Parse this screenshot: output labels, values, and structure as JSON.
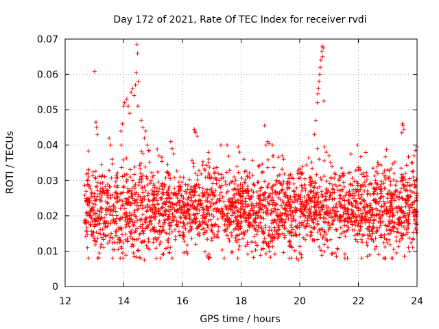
{
  "chart_data": {
    "type": "scatter",
    "title": "Day 172 of 2021, Rate Of TEC Index for receiver rvdi",
    "xlabel": "GPS time / hours",
    "ylabel": "ROTI / TECUs",
    "xlim": [
      12,
      24
    ],
    "ylim": [
      0,
      0.07
    ],
    "xticks": [
      12,
      14,
      16,
      18,
      20,
      22,
      24
    ],
    "yticks": [
      0,
      0.01,
      0.02,
      0.03,
      0.04,
      0.05,
      0.06,
      0.07
    ],
    "xtick_labels": [
      "12",
      "14",
      "16",
      "18",
      "20",
      "22",
      "24"
    ],
    "ytick_labels": [
      "0",
      "0.01",
      "0.02",
      "0.03",
      "0.04",
      "0.05",
      "0.06",
      "0.07"
    ],
    "grid": true,
    "marker": "+",
    "color": "#ff0000",
    "points_generator": {
      "seed": 172,
      "x_start": 12.65,
      "x_end": 24.0,
      "count": 2600,
      "baseline_mean": 0.022,
      "baseline_spread": 0.006,
      "min_value": 0.008,
      "max_value": 0.04
    },
    "points_notable": [
      [
        12.75,
        0.03
      ],
      [
        12.78,
        0.032
      ],
      [
        12.8,
        0.031
      ],
      [
        12.73,
        0.018
      ],
      [
        13.0,
        0.0608
      ],
      [
        13.05,
        0.0465
      ],
      [
        13.07,
        0.045
      ],
      [
        13.1,
        0.043
      ],
      [
        13.15,
        0.015
      ],
      [
        13.5,
        0.042
      ],
      [
        13.55,
        0.04
      ],
      [
        13.6,
        0.036
      ],
      [
        13.9,
        0.044
      ],
      [
        13.95,
        0.046
      ],
      [
        14.0,
        0.051
      ],
      [
        14.02,
        0.052
      ],
      [
        14.1,
        0.053
      ],
      [
        14.15,
        0.051
      ],
      [
        14.2,
        0.049
      ],
      [
        14.25,
        0.055
      ],
      [
        14.3,
        0.056
      ],
      [
        14.35,
        0.054
      ],
      [
        14.4,
        0.057
      ],
      [
        14.42,
        0.0605
      ],
      [
        14.45,
        0.0685
      ],
      [
        14.47,
        0.066
      ],
      [
        14.5,
        0.058
      ],
      [
        14.48,
        0.051
      ],
      [
        14.33,
        0.0095
      ],
      [
        14.35,
        0.0085
      ],
      [
        14.6,
        0.047
      ],
      [
        14.65,
        0.045
      ],
      [
        14.7,
        0.042
      ],
      [
        14.75,
        0.044
      ],
      [
        14.8,
        0.04
      ],
      [
        14.85,
        0.0385
      ],
      [
        14.7,
        0.0075
      ],
      [
        15.2,
        0.037
      ],
      [
        15.6,
        0.041
      ],
      [
        15.65,
        0.039
      ],
      [
        15.7,
        0.0375
      ],
      [
        15.65,
        0.008
      ],
      [
        16.4,
        0.0445
      ],
      [
        16.45,
        0.0435
      ],
      [
        16.5,
        0.0425
      ],
      [
        16.42,
        0.044
      ],
      [
        16.9,
        0.035
      ],
      [
        17.9,
        0.0395
      ],
      [
        17.95,
        0.038
      ],
      [
        18.1,
        0.036
      ],
      [
        18.4,
        0.0315
      ],
      [
        18.8,
        0.0455
      ],
      [
        18.85,
        0.04
      ],
      [
        18.9,
        0.041
      ],
      [
        18.95,
        0.0405
      ],
      [
        19.0,
        0.0083
      ],
      [
        18.7,
        0.0105
      ],
      [
        19.4,
        0.037
      ],
      [
        19.45,
        0.036
      ],
      [
        19.95,
        0.0075
      ],
      [
        20.0,
        0.0095
      ],
      [
        20.1,
        0.034
      ],
      [
        20.5,
        0.043
      ],
      [
        20.55,
        0.047
      ],
      [
        20.6,
        0.052
      ],
      [
        20.62,
        0.0545
      ],
      [
        20.64,
        0.056
      ],
      [
        20.66,
        0.058
      ],
      [
        20.68,
        0.06
      ],
      [
        20.7,
        0.062
      ],
      [
        20.72,
        0.064
      ],
      [
        20.75,
        0.0665
      ],
      [
        20.77,
        0.068
      ],
      [
        20.8,
        0.0675
      ],
      [
        20.78,
        0.065
      ],
      [
        20.82,
        0.0525
      ],
      [
        20.6,
        0.039
      ],
      [
        20.85,
        0.0395
      ],
      [
        20.9,
        0.038
      ],
      [
        21.0,
        0.037
      ],
      [
        21.05,
        0.035
      ],
      [
        21.1,
        0.034
      ],
      [
        21.2,
        0.0095
      ],
      [
        21.25,
        0.0085
      ],
      [
        21.3,
        0.0105
      ],
      [
        21.4,
        0.031
      ],
      [
        22.0,
        0.033
      ],
      [
        22.3,
        0.0085
      ],
      [
        22.5,
        0.0335
      ],
      [
        22.6,
        0.0325
      ],
      [
        22.9,
        0.031
      ],
      [
        23.0,
        0.033
      ],
      [
        23.2,
        0.0105
      ],
      [
        23.3,
        0.0095
      ],
      [
        23.5,
        0.046
      ],
      [
        23.52,
        0.0455
      ],
      [
        23.55,
        0.0445
      ],
      [
        23.48,
        0.0435
      ],
      [
        23.6,
        0.032
      ],
      [
        23.8,
        0.035
      ],
      [
        23.9,
        0.037
      ],
      [
        23.95,
        0.0385
      ],
      [
        24.0,
        0.0395
      ],
      [
        23.7,
        0.0165
      ]
    ]
  }
}
